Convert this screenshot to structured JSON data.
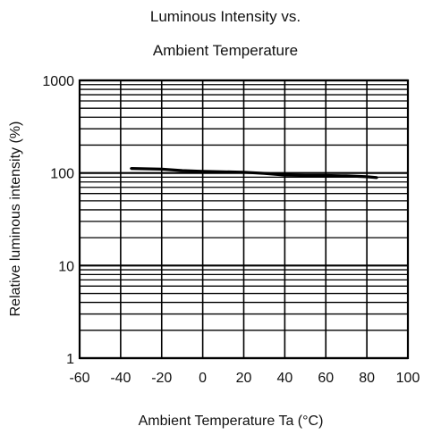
{
  "chart_data": {
    "type": "line",
    "title_lines": [
      "Luminous  Intensity vs.",
      "Ambient Temperature"
    ],
    "xlabel": "Ambient Temperature Ta (°C)",
    "ylabel": "Relative luminous intensity  (%)",
    "xlim": [
      -60,
      100
    ],
    "ylim": [
      1,
      1000
    ],
    "yscale": "log",
    "grid": true,
    "x_ticks": [
      -60,
      -40,
      -20,
      0,
      20,
      40,
      60,
      80,
      100
    ],
    "x_tick_labels": [
      "-60",
      "-40",
      "-20",
      "0",
      "20",
      "40",
      "60",
      "80",
      "100"
    ],
    "y_ticks": [
      1,
      10,
      100,
      1000
    ],
    "y_tick_labels": [
      "1",
      "10",
      "100",
      "1000"
    ],
    "series": [
      {
        "x": [
          -35,
          -20,
          -10,
          0,
          10,
          20,
          30,
          40,
          50,
          60,
          70,
          80,
          85
        ],
        "y": [
          112,
          110,
          106,
          104,
          103,
          102,
          99,
          95,
          94,
          94,
          93,
          91,
          89
        ]
      }
    ],
    "colors": {
      "line": "#000000",
      "grid": "#000000",
      "background": "#ffffff"
    }
  }
}
